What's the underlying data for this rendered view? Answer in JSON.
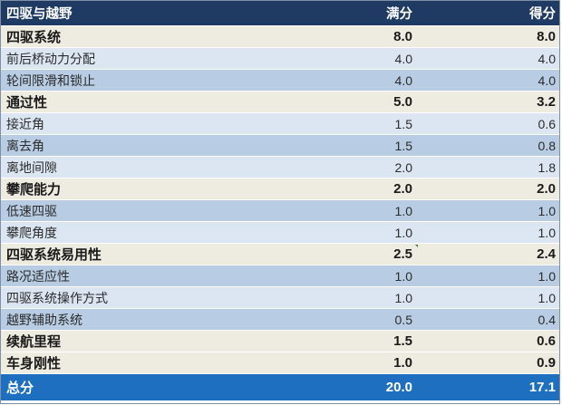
{
  "table": {
    "header": {
      "category": "四驱与越野",
      "full_score": "满分",
      "score": "得分"
    },
    "rows": [
      {
        "type": "category",
        "label": "四驱系统",
        "full": "8.0",
        "score": "8.0"
      },
      {
        "type": "sub-light",
        "label": "前后桥动力分配",
        "full": "4.0",
        "score": "4.0"
      },
      {
        "type": "sub-dark",
        "label": "轮间限滑和锁止",
        "full": "4.0",
        "score": "4.0"
      },
      {
        "type": "category",
        "label": "通过性",
        "full": "5.0",
        "score": "3.2"
      },
      {
        "type": "sub-light",
        "label": "接近角",
        "full": "1.5",
        "score": "0.6"
      },
      {
        "type": "sub-dark",
        "label": "离去角",
        "full": "1.5",
        "score": "0.8"
      },
      {
        "type": "sub-light",
        "label": "离地间隙",
        "full": "2.0",
        "score": "1.8"
      },
      {
        "type": "category",
        "label": "攀爬能力",
        "full": "2.0",
        "score": "2.0"
      },
      {
        "type": "sub-dark",
        "label": "低速四驱",
        "full": "1.0",
        "score": "1.0"
      },
      {
        "type": "sub-light",
        "label": "攀爬角度",
        "full": "1.0",
        "score": "1.0"
      },
      {
        "type": "category",
        "label": "四驱系统易用性",
        "full": "2.5",
        "score": "2.4",
        "marker": true
      },
      {
        "type": "sub-dark",
        "label": "路况适应性",
        "full": "1.0",
        "score": "1.0"
      },
      {
        "type": "sub-light",
        "label": "四驱系统操作方式",
        "full": "1.0",
        "score": "1.0"
      },
      {
        "type": "sub-dark",
        "label": "越野辅助系统",
        "full": "0.5",
        "score": "0.4"
      },
      {
        "type": "category",
        "label": "续航里程",
        "full": "1.5",
        "score": "0.6"
      },
      {
        "type": "category",
        "label": "车身刚性",
        "full": "1.0",
        "score": "0.9"
      }
    ],
    "total": {
      "label": "总分",
      "full": "20.0",
      "score": "17.1"
    }
  },
  "colors": {
    "header_bg": "#1f3b63",
    "category_bg": "#eeece1",
    "sub_light_bg": "#dce6f2",
    "sub_dark_bg": "#b8cce4",
    "total_bg": "#1f6fc0",
    "marker": "#2e8b2e"
  }
}
